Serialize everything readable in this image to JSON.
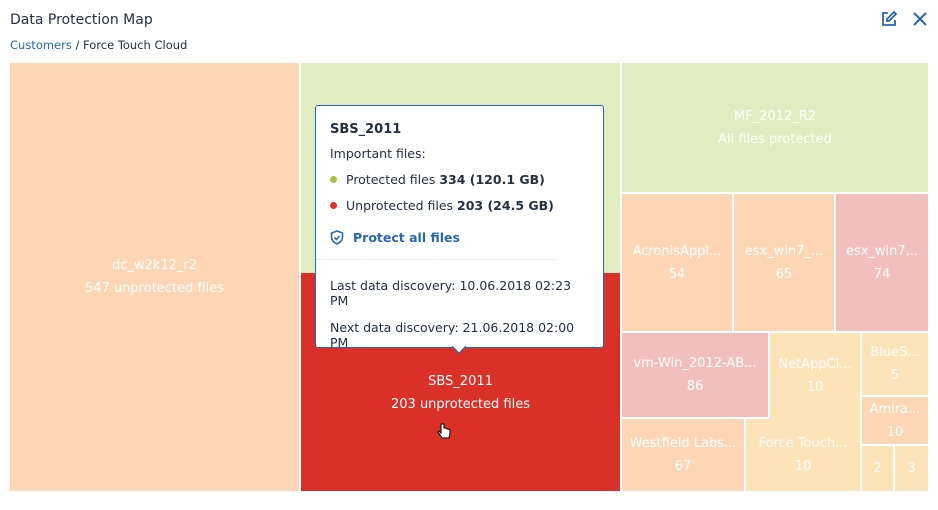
{
  "header": {
    "title": "Data Protection Map",
    "breadcrumb_root": "Customers",
    "breadcrumb_sep": " / ",
    "breadcrumb_current": "Force Touch Cloud"
  },
  "colors": {
    "accent": "#2668b4",
    "protected": "#a8c43c",
    "unprotected": "#d93127"
  },
  "cells": [
    {
      "name": "dc_w2k12_r2",
      "value": "547 unprotected files"
    },
    {
      "name": "",
      "value": ""
    },
    {
      "name": "SBS_2011",
      "value": "203 unprotected files"
    },
    {
      "name": "MF_2012_R2",
      "value": "All files protected"
    },
    {
      "name": "AcronisAppl...",
      "value": "54"
    },
    {
      "name": "esx_win7_...",
      "value": "65"
    },
    {
      "name": "esx_win7...",
      "value": "74"
    },
    {
      "name": "vm-Win_2012-AB...",
      "value": "86"
    },
    {
      "name": "NetAppCl...",
      "value": "10"
    },
    {
      "name": "BlueS...",
      "value": "5"
    },
    {
      "name": "Amira...",
      "value": "10"
    },
    {
      "name": "",
      "value": "2"
    },
    {
      "name": "",
      "value": "3"
    },
    {
      "name": "Westfield Labs...",
      "value": "67"
    },
    {
      "name": "Force Touch...",
      "value": "10"
    }
  ],
  "tooltip": {
    "title": "SBS_2011",
    "subtitle": "Important files:",
    "protected_label": "Protected files ",
    "protected_value": "334 (120.1 GB)",
    "unprotected_label": "Unprotected files ",
    "unprotected_value": "203 (24.5 GB)",
    "action": "Protect all files",
    "last_discovery": "Last data discovery: 10.06.2018 02:23 PM",
    "next_discovery": "Next data discovery: 21.06.2018 02:00 PM"
  }
}
